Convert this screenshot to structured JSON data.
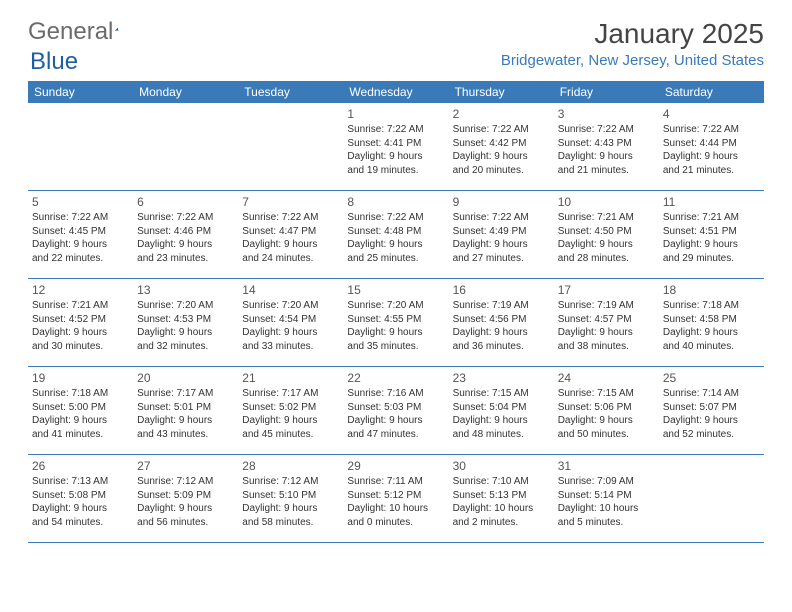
{
  "logo": {
    "text1": "General",
    "text2": "Blue"
  },
  "title": "January 2025",
  "location": "Bridgewater, New Jersey, United States",
  "style": {
    "header_bg": "#3a7ab8",
    "header_text": "#ffffff",
    "line_color": "#3a7ab8",
    "logo_gray": "#6b6b6b",
    "logo_blue": "#1f5f9e",
    "title_color": "#444444",
    "location_color": "#3a7ab8",
    "cell_text": "#333333",
    "day_fontsize": 12,
    "cell_fontsize": 10
  },
  "day_labels": [
    "Sunday",
    "Monday",
    "Tuesday",
    "Wednesday",
    "Thursday",
    "Friday",
    "Saturday"
  ],
  "weeks": [
    [
      null,
      null,
      null,
      {
        "n": "1",
        "sr": "7:22 AM",
        "ss": "4:41 PM",
        "dl": "9 hours",
        "dm": "19 minutes."
      },
      {
        "n": "2",
        "sr": "7:22 AM",
        "ss": "4:42 PM",
        "dl": "9 hours",
        "dm": "20 minutes."
      },
      {
        "n": "3",
        "sr": "7:22 AM",
        "ss": "4:43 PM",
        "dl": "9 hours",
        "dm": "21 minutes."
      },
      {
        "n": "4",
        "sr": "7:22 AM",
        "ss": "4:44 PM",
        "dl": "9 hours",
        "dm": "21 minutes."
      }
    ],
    [
      {
        "n": "5",
        "sr": "7:22 AM",
        "ss": "4:45 PM",
        "dl": "9 hours",
        "dm": "22 minutes."
      },
      {
        "n": "6",
        "sr": "7:22 AM",
        "ss": "4:46 PM",
        "dl": "9 hours",
        "dm": "23 minutes."
      },
      {
        "n": "7",
        "sr": "7:22 AM",
        "ss": "4:47 PM",
        "dl": "9 hours",
        "dm": "24 minutes."
      },
      {
        "n": "8",
        "sr": "7:22 AM",
        "ss": "4:48 PM",
        "dl": "9 hours",
        "dm": "25 minutes."
      },
      {
        "n": "9",
        "sr": "7:22 AM",
        "ss": "4:49 PM",
        "dl": "9 hours",
        "dm": "27 minutes."
      },
      {
        "n": "10",
        "sr": "7:21 AM",
        "ss": "4:50 PM",
        "dl": "9 hours",
        "dm": "28 minutes."
      },
      {
        "n": "11",
        "sr": "7:21 AM",
        "ss": "4:51 PM",
        "dl": "9 hours",
        "dm": "29 minutes."
      }
    ],
    [
      {
        "n": "12",
        "sr": "7:21 AM",
        "ss": "4:52 PM",
        "dl": "9 hours",
        "dm": "30 minutes."
      },
      {
        "n": "13",
        "sr": "7:20 AM",
        "ss": "4:53 PM",
        "dl": "9 hours",
        "dm": "32 minutes."
      },
      {
        "n": "14",
        "sr": "7:20 AM",
        "ss": "4:54 PM",
        "dl": "9 hours",
        "dm": "33 minutes."
      },
      {
        "n": "15",
        "sr": "7:20 AM",
        "ss": "4:55 PM",
        "dl": "9 hours",
        "dm": "35 minutes."
      },
      {
        "n": "16",
        "sr": "7:19 AM",
        "ss": "4:56 PM",
        "dl": "9 hours",
        "dm": "36 minutes."
      },
      {
        "n": "17",
        "sr": "7:19 AM",
        "ss": "4:57 PM",
        "dl": "9 hours",
        "dm": "38 minutes."
      },
      {
        "n": "18",
        "sr": "7:18 AM",
        "ss": "4:58 PM",
        "dl": "9 hours",
        "dm": "40 minutes."
      }
    ],
    [
      {
        "n": "19",
        "sr": "7:18 AM",
        "ss": "5:00 PM",
        "dl": "9 hours",
        "dm": "41 minutes."
      },
      {
        "n": "20",
        "sr": "7:17 AM",
        "ss": "5:01 PM",
        "dl": "9 hours",
        "dm": "43 minutes."
      },
      {
        "n": "21",
        "sr": "7:17 AM",
        "ss": "5:02 PM",
        "dl": "9 hours",
        "dm": "45 minutes."
      },
      {
        "n": "22",
        "sr": "7:16 AM",
        "ss": "5:03 PM",
        "dl": "9 hours",
        "dm": "47 minutes."
      },
      {
        "n": "23",
        "sr": "7:15 AM",
        "ss": "5:04 PM",
        "dl": "9 hours",
        "dm": "48 minutes."
      },
      {
        "n": "24",
        "sr": "7:15 AM",
        "ss": "5:06 PM",
        "dl": "9 hours",
        "dm": "50 minutes."
      },
      {
        "n": "25",
        "sr": "7:14 AM",
        "ss": "5:07 PM",
        "dl": "9 hours",
        "dm": "52 minutes."
      }
    ],
    [
      {
        "n": "26",
        "sr": "7:13 AM",
        "ss": "5:08 PM",
        "dl": "9 hours",
        "dm": "54 minutes."
      },
      {
        "n": "27",
        "sr": "7:12 AM",
        "ss": "5:09 PM",
        "dl": "9 hours",
        "dm": "56 minutes."
      },
      {
        "n": "28",
        "sr": "7:12 AM",
        "ss": "5:10 PM",
        "dl": "9 hours",
        "dm": "58 minutes."
      },
      {
        "n": "29",
        "sr": "7:11 AM",
        "ss": "5:12 PM",
        "dl": "10 hours",
        "dm": "0 minutes."
      },
      {
        "n": "30",
        "sr": "7:10 AM",
        "ss": "5:13 PM",
        "dl": "10 hours",
        "dm": "2 minutes."
      },
      {
        "n": "31",
        "sr": "7:09 AM",
        "ss": "5:14 PM",
        "dl": "10 hours",
        "dm": "5 minutes."
      },
      null
    ]
  ]
}
